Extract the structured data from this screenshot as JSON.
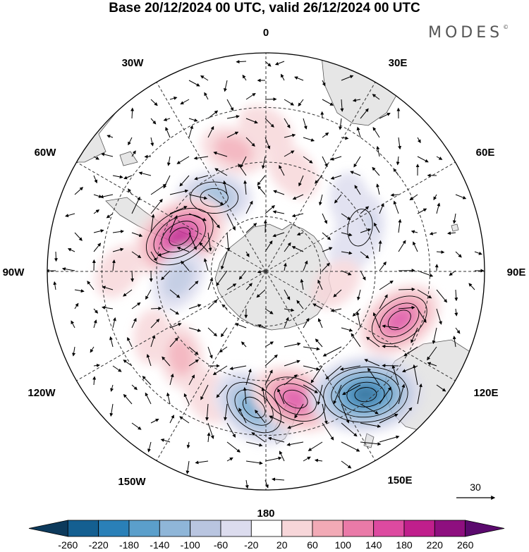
{
  "title": "Base 20/12/2024 00 UTC, valid 26/12/2024 00 UTC",
  "brand": {
    "name": "MODES",
    "mark": "©"
  },
  "longitude_labels": [
    "0",
    "30E",
    "60E",
    "90E",
    "120E",
    "150E",
    "180",
    "150W",
    "120W",
    "90W",
    "60W",
    "30W"
  ],
  "reference_vector": {
    "label": "30"
  },
  "colorbar": {
    "labels": [
      "-260",
      "-220",
      "-180",
      "-140",
      "-100",
      "-60",
      "-20",
      "20",
      "60",
      "100",
      "140",
      "180",
      "220",
      "260"
    ],
    "colors": [
      "#0d3a5c",
      "#145f91",
      "#2a80b8",
      "#5b9fcb",
      "#8fb6d8",
      "#b9c5e0",
      "#dcdcee",
      "#ffffff",
      "#f7d6d9",
      "#f2aab6",
      "#ea7aa8",
      "#dd4aa0",
      "#c01f8c",
      "#8e0f7f",
      "#5b0a6e"
    ]
  },
  "colors": {
    "land": "#e6e6e6",
    "coast": "#555555",
    "grid": "#333333"
  },
  "anomaly_features": [
    {
      "lon": 0,
      "lat": -38,
      "value": 50
    },
    {
      "lon": 15,
      "lat": -52,
      "value": 55
    },
    {
      "lon": 345,
      "lat": -44,
      "value": 75
    },
    {
      "lon": 325,
      "lat": -57,
      "value": -110
    },
    {
      "lon": 300,
      "lat": -55,
      "value": -55
    },
    {
      "lon": 292,
      "lat": -56,
      "value": 200
    },
    {
      "lon": 265,
      "lat": -58,
      "value": -80
    },
    {
      "lon": 270,
      "lat": -36,
      "value": 45
    },
    {
      "lon": 240,
      "lat": -42,
      "value": 35
    },
    {
      "lon": 225,
      "lat": -46,
      "value": 70
    },
    {
      "lon": 205,
      "lat": -40,
      "value": 55
    },
    {
      "lon": 185,
      "lat": -40,
      "value": -160
    },
    {
      "lon": 167,
      "lat": -42,
      "value": 160
    },
    {
      "lon": 141,
      "lat": -32,
      "value": -240
    },
    {
      "lon": 110,
      "lat": -38,
      "value": 155
    },
    {
      "lon": 65,
      "lat": -52,
      "value": -95
    },
    {
      "lon": 75,
      "lat": -58,
      "value": -50
    },
    {
      "lon": 50,
      "lat": -50,
      "value": -45
    },
    {
      "lon": 100,
      "lat": -64,
      "value": 40
    }
  ]
}
